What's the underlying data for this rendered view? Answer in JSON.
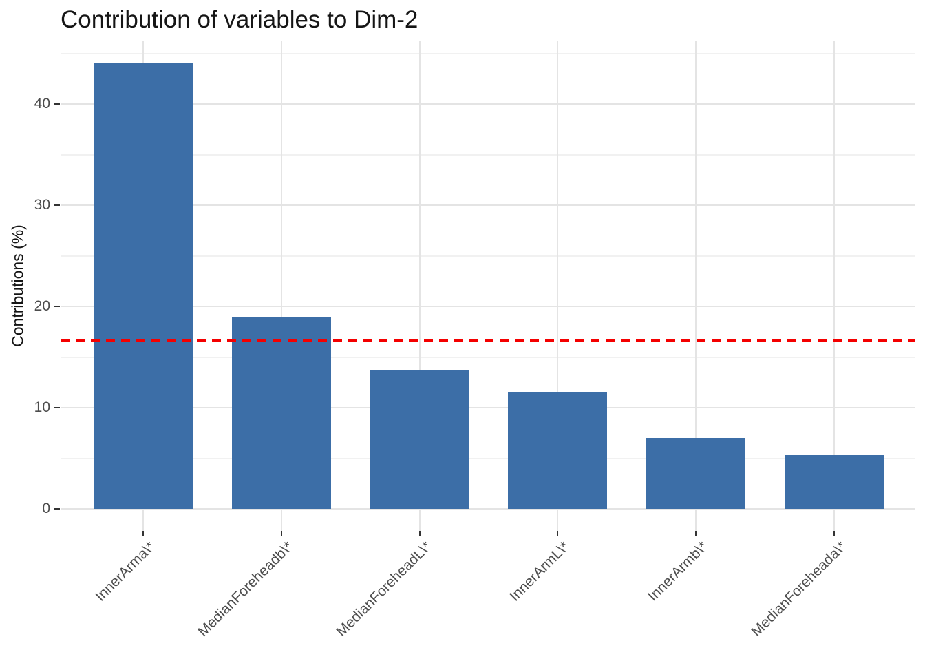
{
  "chart_data": {
    "type": "bar",
    "title": "Contribution of variables to Dim-2",
    "xlabel": "",
    "ylabel": "Contributions (%)",
    "categories": [
      "InnerArma\\*",
      "MedianForeheadb\\*",
      "MedianForeheadL\\*",
      "InnerArmL\\*",
      "InnerArmb\\*",
      "MedianForeheada\\*"
    ],
    "values": [
      44.0,
      18.9,
      13.7,
      11.5,
      7.0,
      5.3
    ],
    "y_major_ticks": [
      0,
      10,
      20,
      30,
      40
    ],
    "y_minor_ticks": [
      5,
      15,
      25,
      35,
      45
    ],
    "ylim": [
      0,
      45.6
    ],
    "reference_line": {
      "value": 16.67,
      "meaning": "expected average contribution",
      "style": "dashed",
      "color": "#f40000"
    },
    "bar_color": "#3c6ea7",
    "grid": "horizontal major+minor, vertical major at categories; no legend",
    "legend": "none"
  },
  "colors": {
    "background": "#ffffff",
    "bar_fill": "#3c6ea7",
    "reference_red": "#f40000",
    "grid_major": "#e4e4e4",
    "grid_minor": "#f1f1f1",
    "tick_mark": "#333333",
    "tick_text": "#4d4d4d",
    "title_text": "#151515"
  }
}
